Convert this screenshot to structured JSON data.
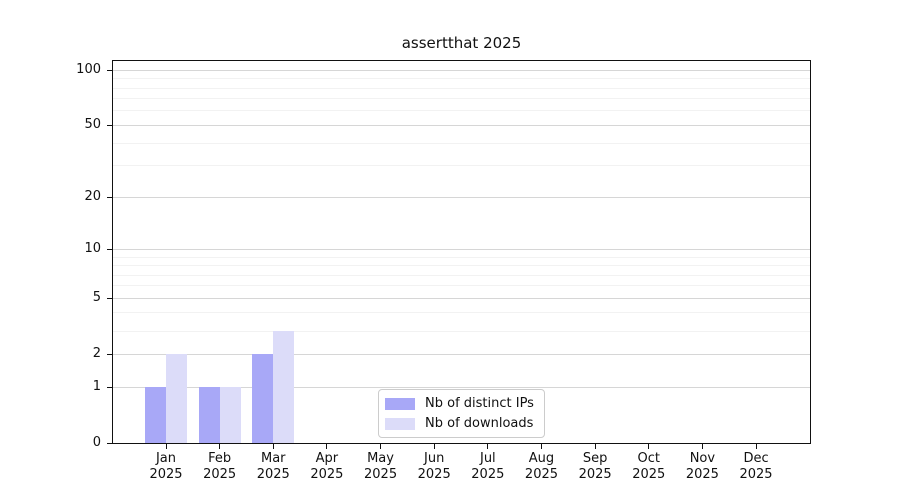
{
  "chart_data": {
    "type": "bar",
    "title": "assertthat 2025",
    "categories": [
      "Jan 2025",
      "Feb 2025",
      "Mar 2025",
      "Apr 2025",
      "May 2025",
      "Jun 2025",
      "Jul 2025",
      "Aug 2025",
      "Sep 2025",
      "Oct 2025",
      "Nov 2025",
      "Dec 2025"
    ],
    "series": [
      {
        "name": "Nb of distinct IPs",
        "color": "#a8a8f7",
        "values": [
          1,
          1,
          2,
          0,
          0,
          0,
          0,
          0,
          0,
          0,
          0,
          0
        ]
      },
      {
        "name": "Nb of downloads",
        "color": "#dcdcf9",
        "values": [
          2,
          1,
          3,
          0,
          0,
          0,
          0,
          0,
          0,
          0,
          0,
          0
        ]
      }
    ],
    "xlabel": "",
    "ylabel": "",
    "yscale": "log1p",
    "ylim": [
      0,
      110
    ],
    "yticks_major": [
      0,
      1,
      2,
      5,
      10,
      20,
      50,
      100
    ],
    "yticks_minor": [
      3,
      4,
      6,
      7,
      8,
      9,
      30,
      40,
      60,
      70,
      80,
      90
    ],
    "grid": "horizontal",
    "legend_position": "lower center",
    "colors": {
      "grid_major": "#d6d6d6",
      "grid_minor": "#f2f2f2",
      "spine": "#111111",
      "text": "#111111"
    }
  }
}
